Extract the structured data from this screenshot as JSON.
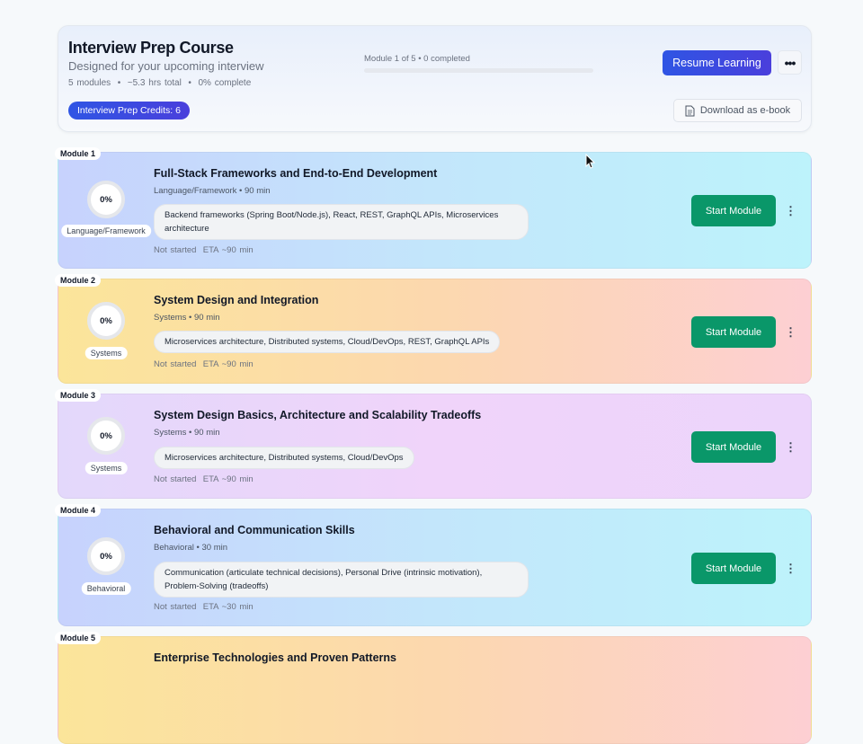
{
  "header": {
    "title": "Interview Prep Course",
    "subtitle": "Designed for your upcoming interview",
    "meta": "5 modules  •  ~5.3 hrs total  •  0% complete",
    "credits": "Interview Prep Credits: 6",
    "progress_text": "Module 1 of 5 • 0 completed",
    "progress_percent": 0,
    "resume_label": "Resume Learning",
    "more_label": "•••",
    "download_label": "Download as e-book"
  },
  "modules": [
    {
      "label": "Module 1",
      "percent": "0%",
      "category": "Language/Framework",
      "title": "Full-Stack Frameworks and End-to-End Development",
      "meta": "Language/Framework • 90 min",
      "topics": "Backend frameworks (Spring Boot/Node.js), React, REST, GraphQL APIs, Microservices architecture",
      "status": "Not started  ETA ~90 min",
      "button": "Start Module",
      "kebab": "⋮"
    },
    {
      "label": "Module 2",
      "percent": "0%",
      "category": "Systems",
      "title": "System Design and Integration",
      "meta": "Systems • 90 min",
      "topics": "Microservices architecture, Distributed systems, Cloud/DevOps, REST, GraphQL APIs",
      "status": "Not started  ETA ~90 min",
      "button": "Start Module",
      "kebab": "⋮"
    },
    {
      "label": "Module 3",
      "percent": "0%",
      "category": "Systems",
      "title": "System Design Basics, Architecture and Scalability Tradeoffs",
      "meta": "Systems • 90 min",
      "topics": "Microservices architecture, Distributed systems, Cloud/DevOps",
      "status": "Not started  ETA ~90 min",
      "button": "Start Module",
      "kebab": "⋮"
    },
    {
      "label": "Module 4",
      "percent": "0%",
      "category": "Behavioral",
      "title": "Behavioral and Communication Skills",
      "meta": "Behavioral • 30 min",
      "topics": "Communication (articulate technical decisions), Personal Drive (intrinsic motivation), Problem-Solving (tradeoffs)",
      "status": "Not started  ETA ~30 min",
      "button": "Start Module",
      "kebab": "⋮"
    },
    {
      "label": "Module 5",
      "title": "Enterprise Technologies and Proven Patterns"
    }
  ]
}
